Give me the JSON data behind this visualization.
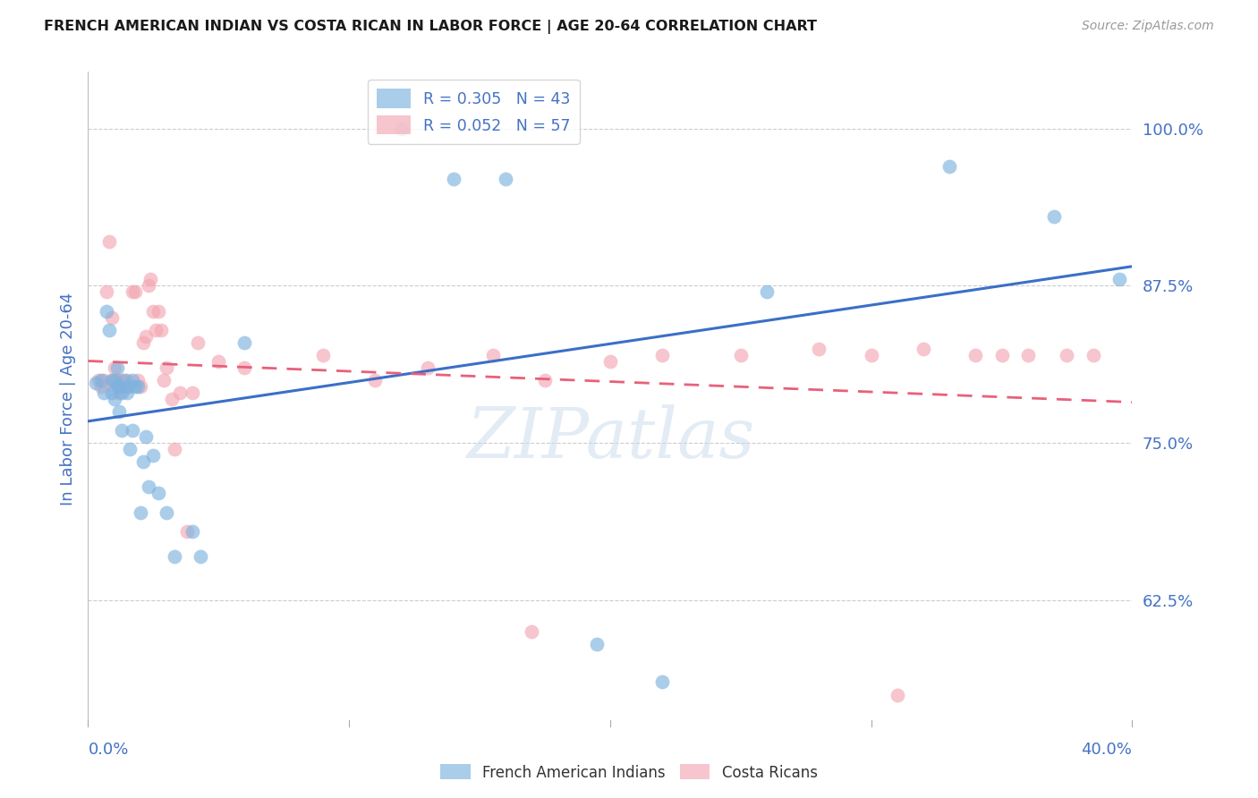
{
  "title": "FRENCH AMERICAN INDIAN VS COSTA RICAN IN LABOR FORCE | AGE 20-64 CORRELATION CHART",
  "source": "Source: ZipAtlas.com",
  "ylabel": "In Labor Force | Age 20-64",
  "ytick_vals": [
    0.625,
    0.75,
    0.875,
    1.0
  ],
  "ytick_labels": [
    "62.5%",
    "75.0%",
    "87.5%",
    "100.0%"
  ],
  "xmin": 0.0,
  "xmax": 0.4,
  "ymin": 0.525,
  "ymax": 1.045,
  "legend_r1": "R = 0.305",
  "legend_n1": "N = 43",
  "legend_r2": "R = 0.052",
  "legend_n2": "N = 57",
  "color_blue": "#7DB3E0",
  "color_pink": "#F4A7B2",
  "color_line_blue": "#3B6FC7",
  "color_line_pink": "#E8607A",
  "color_text_blue": "#4472C4",
  "watermark": "ZIPatlas",
  "blue_x": [
    0.003,
    0.005,
    0.006,
    0.007,
    0.008,
    0.009,
    0.009,
    0.01,
    0.01,
    0.011,
    0.011,
    0.012,
    0.012,
    0.013,
    0.013,
    0.014,
    0.015,
    0.015,
    0.016,
    0.017,
    0.017,
    0.018,
    0.019,
    0.02,
    0.021,
    0.022,
    0.023,
    0.025,
    0.027,
    0.03,
    0.033,
    0.04,
    0.043,
    0.06,
    0.12,
    0.16,
    0.195,
    0.22,
    0.26,
    0.33,
    0.37,
    0.395,
    0.14
  ],
  "blue_y": [
    0.798,
    0.8,
    0.79,
    0.855,
    0.84,
    0.79,
    0.8,
    0.785,
    0.8,
    0.795,
    0.81,
    0.775,
    0.795,
    0.76,
    0.79,
    0.8,
    0.79,
    0.795,
    0.745,
    0.76,
    0.8,
    0.795,
    0.795,
    0.695,
    0.735,
    0.755,
    0.715,
    0.74,
    0.71,
    0.695,
    0.66,
    0.68,
    0.66,
    0.83,
    1.0,
    0.96,
    0.59,
    0.56,
    0.87,
    0.97,
    0.93,
    0.88,
    0.96
  ],
  "pink_x": [
    0.004,
    0.005,
    0.006,
    0.007,
    0.008,
    0.009,
    0.009,
    0.01,
    0.01,
    0.011,
    0.012,
    0.012,
    0.013,
    0.013,
    0.014,
    0.015,
    0.016,
    0.017,
    0.018,
    0.019,
    0.02,
    0.021,
    0.022,
    0.023,
    0.024,
    0.025,
    0.026,
    0.027,
    0.028,
    0.029,
    0.03,
    0.032,
    0.033,
    0.035,
    0.038,
    0.04,
    0.042,
    0.05,
    0.06,
    0.09,
    0.11,
    0.13,
    0.155,
    0.175,
    0.2,
    0.22,
    0.25,
    0.28,
    0.3,
    0.32,
    0.34,
    0.35,
    0.36,
    0.375,
    0.385,
    0.17,
    0.31
  ],
  "pink_y": [
    0.8,
    0.795,
    0.8,
    0.87,
    0.91,
    0.85,
    0.8,
    0.795,
    0.81,
    0.8,
    0.8,
    0.79,
    0.795,
    0.8,
    0.795,
    0.8,
    0.795,
    0.87,
    0.87,
    0.8,
    0.795,
    0.83,
    0.835,
    0.875,
    0.88,
    0.855,
    0.84,
    0.855,
    0.84,
    0.8,
    0.81,
    0.785,
    0.745,
    0.79,
    0.68,
    0.79,
    0.83,
    0.815,
    0.81,
    0.82,
    0.8,
    0.81,
    0.82,
    0.8,
    0.815,
    0.82,
    0.82,
    0.825,
    0.82,
    0.825,
    0.82,
    0.82,
    0.82,
    0.82,
    0.82,
    0.6,
    0.55
  ]
}
